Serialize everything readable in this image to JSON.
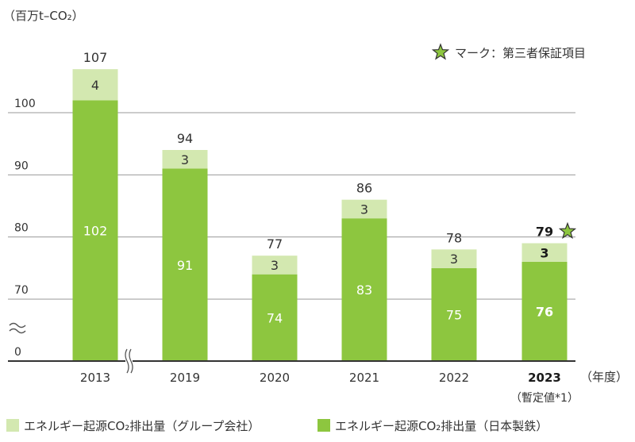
{
  "chart_data": {
    "type": "bar",
    "stacked": true,
    "unit_label": "（百万t–CO₂）",
    "x_axis_unit": "（年度）",
    "note": "マーク：第三者保証項目",
    "categories": [
      "2013",
      "2019",
      "2020",
      "2021",
      "2022",
      "2023"
    ],
    "category_sublabels": [
      "",
      "",
      "",
      "",
      "",
      "（暫定値*1）"
    ],
    "series": [
      {
        "name": "エネルギー起源CO₂排出量（日本製鉄）",
        "color": "#8dc63f",
        "values": [
          102,
          91,
          74,
          83,
          75,
          76
        ]
      },
      {
        "name": "エネルギー起源CO₂排出量（グループ会社）",
        "color": "#d3e8b0",
        "values": [
          4,
          3,
          3,
          3,
          3,
          3
        ]
      }
    ],
    "totals": [
      107,
      94,
      77,
      86,
      78,
      79
    ],
    "yticks": [
      "0",
      "70",
      "80",
      "90",
      "100"
    ],
    "axis_break": true,
    "ylim": [
      65,
      110
    ],
    "grid": true,
    "legend_position": "bottom",
    "highlight_category": "2023",
    "highlight_mark": "star"
  }
}
